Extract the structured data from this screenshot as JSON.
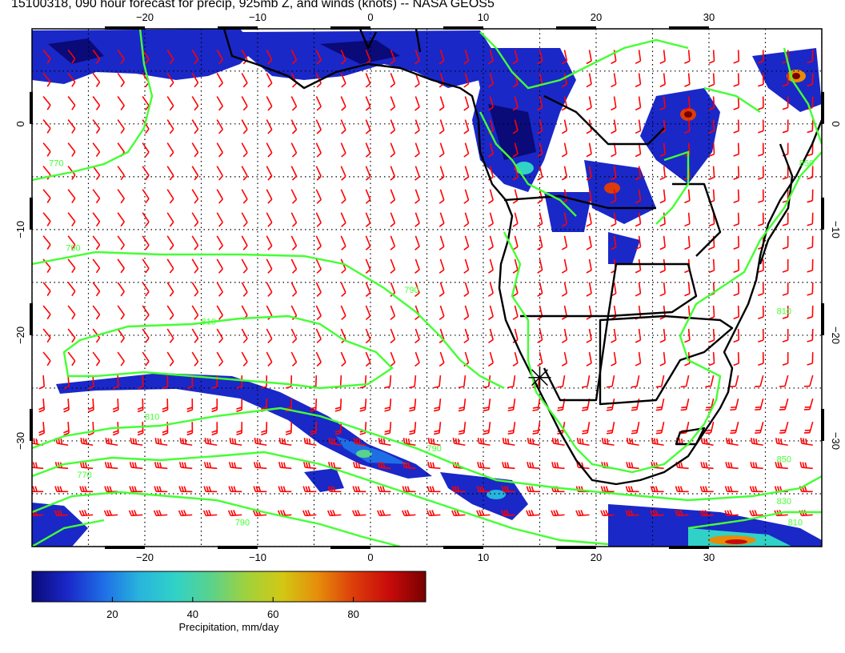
{
  "title": "15100318, 090 hour forecast for precip, 925mb Z, and winds (knots) -- NASA GEOS5",
  "map": {
    "lon_range": [
      -30,
      40
    ],
    "lat_range": [
      -40,
      9
    ],
    "lon_ticks": [
      {
        "value": -20,
        "label": "−20"
      },
      {
        "value": -10,
        "label": "−10"
      },
      {
        "value": 0,
        "label": "0"
      },
      {
        "value": 10,
        "label": "10"
      },
      {
        "value": 20,
        "label": "20"
      },
      {
        "value": 30,
        "label": "30"
      }
    ],
    "lat_ticks": [
      {
        "value": 0,
        "label": "0"
      },
      {
        "value": -10,
        "label": "−10"
      },
      {
        "value": -20,
        "label": "−20"
      },
      {
        "value": -30,
        "label": "−30"
      }
    ],
    "grid_lines": true,
    "contour_color": "#44ff33",
    "wind_barb_color": "#ff0000",
    "coast_color": "#000000",
    "contour_labels": [
      {
        "lon": -28.5,
        "lat": -4,
        "text": "770"
      },
      {
        "lon": -27,
        "lat": -12,
        "text": "790"
      },
      {
        "lon": -15,
        "lat": -19,
        "text": "810"
      },
      {
        "lon": 3,
        "lat": -16,
        "text": "790"
      },
      {
        "lon": -20,
        "lat": -28,
        "text": "810"
      },
      {
        "lon": -26,
        "lat": -33.5,
        "text": "770"
      },
      {
        "lon": 5,
        "lat": -31,
        "text": "790"
      },
      {
        "lon": -12,
        "lat": -38,
        "text": "790"
      },
      {
        "lon": 36,
        "lat": -32,
        "text": "850"
      },
      {
        "lon": 36,
        "lat": -36,
        "text": "830"
      },
      {
        "lon": 37,
        "lat": -38,
        "text": "810"
      },
      {
        "lon": 38,
        "lat": -4,
        "text": "850"
      },
      {
        "lon": 36,
        "lat": -18,
        "text": "810"
      }
    ],
    "marker": {
      "lon": 15,
      "lat": -24,
      "symbol": "asterisk"
    }
  },
  "colorbar": {
    "label": "Precipitation, mm/day",
    "min": 0,
    "max": 98,
    "ticks": [
      20,
      40,
      60,
      80
    ],
    "colors": [
      "#0a0a78",
      "#1a28c8",
      "#1e6ee6",
      "#28b4dc",
      "#30d2c8",
      "#5ad28c",
      "#a0d23c",
      "#d2c814",
      "#e68c0a",
      "#dc3c0a",
      "#c80a0a",
      "#780000"
    ]
  }
}
